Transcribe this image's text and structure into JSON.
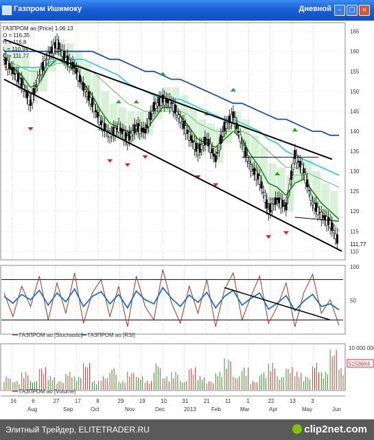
{
  "window": {
    "title": "Газпром Ишимоку",
    "timeframe": "Дневной"
  },
  "legend": {
    "price_info": [
      "ГАЗПРОМ ао [Price] 1.06.13",
      "O = 116,35",
      "H = 116,8",
      "L = 110,94",
      "C = 111,77"
    ],
    "stoch_label": "ГАЗПРОМ ао [Stochastic]",
    "rsi_label": "ГАЗПРОМ ао [RSI]",
    "volume_label": "ГАЗПРОМ ао [Volume]"
  },
  "colors": {
    "stochastic": "#a0302a",
    "rsi": "#1e6fcc",
    "volume": "#c8323a",
    "kijun": "#0a8a0a",
    "tenkan": "#7ec07e",
    "slow_ma": "#1f4fa8",
    "mid_ma": "#3fc8d8",
    "cloud": "#8fd88f",
    "up_arrow": "#1da31d",
    "down_arrow": "#d42424"
  },
  "footer": {
    "left_text": "Элитный Трейдер, ELITETRADER.RU",
    "logo_text": "clip2net.com"
  },
  "chart_data": [
    {
      "type": "candlestick",
      "title": "ГАЗПРОМ ао [Price]",
      "ylim": [
        108,
        167
      ],
      "y_ticks": [
        110,
        115,
        120,
        125,
        130,
        135,
        140,
        145,
        150,
        155,
        160,
        165
      ],
      "last_price_label": "111,77",
      "x_day_ticks": [
        "16",
        "6",
        "27",
        "17",
        "8",
        "29",
        "19",
        "10",
        "31",
        "21",
        "11",
        "1",
        "22",
        "13",
        "3"
      ],
      "x_month_ticks": [
        "Aug",
        "Sep",
        "Oct",
        "Nov",
        "Dec",
        "2013",
        "Feb",
        "Mar",
        "Apr",
        "May",
        "Jun"
      ],
      "close_path": [
        158,
        155,
        152,
        147,
        154,
        159,
        162,
        158,
        156,
        151,
        147,
        142,
        139,
        141,
        138,
        141,
        140,
        146,
        148,
        147,
        143,
        139,
        135,
        138,
        133,
        141,
        144,
        137,
        131,
        128,
        120,
        123,
        121,
        134,
        130,
        122,
        119,
        117,
        111.77
      ],
      "series": [
        {
          "name": "Kijun",
          "values": [
            157,
            156,
            154,
            151,
            152,
            156,
            158,
            157,
            155,
            152,
            149,
            145,
            142,
            141,
            140,
            140,
            140,
            143,
            146,
            146,
            144,
            141,
            138,
            137,
            136,
            138,
            140,
            138,
            134,
            131,
            127,
            126,
            124,
            127,
            128,
            125,
            122,
            120,
            118
          ]
        },
        {
          "name": "Tenkan",
          "values": [
            158,
            156,
            153,
            149,
            152,
            157,
            160,
            158,
            155,
            151,
            147,
            143,
            140,
            140,
            139,
            140,
            141,
            145,
            147,
            146,
            143,
            139,
            136,
            137,
            134,
            139,
            142,
            137,
            132,
            129,
            123,
            123,
            122,
            129,
            129,
            123,
            120,
            118,
            115
          ]
        },
        {
          "name": "MA fast",
          "values": [
            157,
            157,
            156,
            155,
            155,
            156,
            157,
            157,
            157,
            156,
            155,
            153,
            151,
            149,
            147,
            146,
            145,
            145,
            145,
            145,
            145,
            144,
            142,
            141,
            140,
            140,
            140,
            140,
            139,
            137,
            135,
            133,
            131,
            131,
            130,
            129,
            128,
            127,
            126
          ]
        },
        {
          "name": "MA mid",
          "values": [
            156,
            156,
            156,
            156,
            156,
            157,
            158,
            158,
            158,
            158,
            157,
            156,
            155,
            154,
            152,
            151,
            150,
            149,
            148,
            148,
            148,
            147,
            146,
            145,
            144,
            143,
            143,
            142,
            141,
            140,
            138,
            137,
            135,
            134,
            133,
            132,
            131,
            130,
            129
          ]
        },
        {
          "name": "MA slow",
          "values": [
            160,
            160,
            160,
            160,
            160,
            160,
            160,
            160,
            160,
            160,
            160,
            159,
            158,
            158,
            157,
            156,
            155,
            155,
            154,
            153,
            153,
            152,
            151,
            150,
            149,
            148,
            147,
            147,
            146,
            145,
            144,
            143,
            143,
            142,
            141,
            140,
            140,
            139,
            139
          ]
        }
      ]
    },
    {
      "type": "line",
      "title": "Stochastic / RSI",
      "ylim": [
        0,
        100
      ],
      "y_ticks": [
        100,
        50
      ],
      "levels": [
        80,
        20
      ],
      "series": [
        {
          "name": "ГАЗПРОМ ао [Stochastic]",
          "values": [
            60,
            25,
            70,
            40,
            85,
            20,
            75,
            30,
            90,
            15,
            60,
            80,
            25,
            70,
            10,
            85,
            40,
            20,
            95,
            45,
            15,
            70,
            30,
            80,
            10,
            65,
            90,
            20,
            55,
            85,
            15,
            40,
            75,
            10,
            60,
            88,
            30,
            50,
            12
          ]
        },
        {
          "name": "ГАЗПРОМ ао [RSI]",
          "values": [
            55,
            45,
            58,
            50,
            64,
            42,
            60,
            47,
            66,
            40,
            55,
            62,
            44,
            58,
            38,
            63,
            50,
            44,
            68,
            52,
            40,
            57,
            46,
            61,
            38,
            55,
            64,
            42,
            52,
            60,
            36,
            45,
            56,
            34,
            48,
            58,
            40,
            44,
            35
          ]
        }
      ]
    },
    {
      "type": "bar",
      "title": "ГАЗПРОМ ао [Volume]",
      "ylim": [
        0,
        10000000
      ],
      "y_ticks": [
        "10 000 000"
      ],
      "last_value_label": "5153664",
      "values": [
        3,
        2,
        4,
        2,
        5,
        3,
        2,
        4,
        3,
        6,
        2,
        3,
        5,
        2,
        4,
        3,
        2,
        6,
        3,
        4,
        2,
        5,
        3,
        2,
        4,
        7,
        3,
        5,
        2,
        4,
        6,
        3,
        5,
        4,
        3,
        6,
        4,
        9,
        5
      ],
      "value_unit_multiplier": 1000000
    }
  ]
}
